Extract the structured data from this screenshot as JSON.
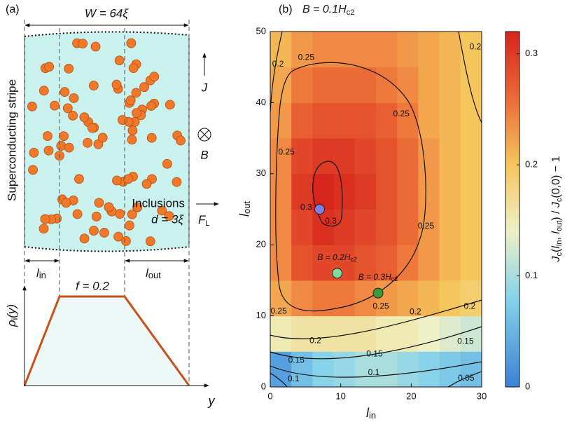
{
  "panel_a": {
    "label": "(a)",
    "width_label": "W = 64ξ",
    "current": "J",
    "field": "B",
    "force": [
      "F",
      "L"
    ],
    "side_label": "Superconducting stripe",
    "inclusions": "Inclusions",
    "size_label": "d = 3ξ",
    "l_in": [
      "l",
      "in"
    ],
    "l_out": [
      "l",
      "out"
    ],
    "rho": [
      "ρ",
      "i",
      "(y)"
    ],
    "f_label": "f = 0.2",
    "y_label": "y"
  },
  "chart_data": {
    "type": "heatmap",
    "panel_label": "(b)",
    "title": [
      "B = 0.1H",
      "c2"
    ],
    "xlabel": [
      "l",
      "in"
    ],
    "ylabel": [
      "l",
      "out"
    ],
    "colorbar_label": [
      "J",
      "c",
      "(",
      "l",
      "in",
      ", ",
      "l",
      "out",
      ") / ",
      "J",
      "c",
      "(0,0) − 1"
    ],
    "xlim": [
      0,
      30
    ],
    "xticks": [
      0,
      10,
      20,
      30
    ],
    "ylim": [
      0,
      50
    ],
    "yticks": [
      0,
      10,
      20,
      30,
      40,
      50
    ],
    "clim": [
      0,
      0.32
    ],
    "cticks": [
      0,
      0.1,
      0.2,
      0.3
    ],
    "colorscale": [
      [
        0,
        "#3b82d6"
      ],
      [
        0.08,
        "#86d3ea"
      ],
      [
        0.14,
        "#eef0c6"
      ],
      [
        0.2,
        "#f5c65c"
      ],
      [
        0.26,
        "#ec6a36"
      ],
      [
        0.32,
        "#d7241c"
      ]
    ],
    "x": [
      1.5,
      4.5,
      7.5,
      10.5,
      13.5,
      16.5,
      19.5,
      22.5,
      25.5,
      28.5
    ],
    "y": [
      2.5,
      7.5,
      12.5,
      17.5,
      22.5,
      27.5,
      32.5,
      37.5,
      42.5,
      47.5
    ],
    "z": [
      [
        0.03,
        0.06,
        0.08,
        0.09,
        0.1,
        0.1,
        0.09,
        0.08,
        0.07,
        0.06
      ],
      [
        0.15,
        0.16,
        0.16,
        0.16,
        0.16,
        0.15,
        0.15,
        0.14,
        0.13,
        0.12
      ],
      [
        0.22,
        0.24,
        0.25,
        0.25,
        0.24,
        0.23,
        0.22,
        0.21,
        0.2,
        0.19
      ],
      [
        0.24,
        0.28,
        0.29,
        0.29,
        0.28,
        0.27,
        0.25,
        0.23,
        0.21,
        0.2
      ],
      [
        0.24,
        0.29,
        0.31,
        0.3,
        0.29,
        0.28,
        0.26,
        0.23,
        0.21,
        0.2
      ],
      [
        0.24,
        0.3,
        0.32,
        0.31,
        0.3,
        0.28,
        0.26,
        0.23,
        0.21,
        0.2
      ],
      [
        0.24,
        0.29,
        0.3,
        0.3,
        0.29,
        0.28,
        0.26,
        0.23,
        0.21,
        0.2
      ],
      [
        0.23,
        0.27,
        0.28,
        0.28,
        0.28,
        0.27,
        0.25,
        0.22,
        0.21,
        0.2
      ],
      [
        0.22,
        0.25,
        0.26,
        0.26,
        0.26,
        0.25,
        0.24,
        0.22,
        0.21,
        0.2
      ],
      [
        0.21,
        0.23,
        0.24,
        0.24,
        0.24,
        0.24,
        0.23,
        0.22,
        0.21,
        0.2
      ]
    ],
    "contour_levels": [
      0.05,
      0.1,
      0.15,
      0.2,
      0.25,
      0.3
    ],
    "contour_labels": [
      {
        "value": 0.25,
        "x": 5.1,
        "y": 46.3
      },
      {
        "value": 0.2,
        "x": 1.1,
        "y": 45.4
      },
      {
        "value": 0.25,
        "x": 18.6,
        "y": 38.4
      },
      {
        "value": 0.25,
        "x": 2.3,
        "y": 33
      },
      {
        "value": 0.3,
        "x": 5.1,
        "y": 25.2
      },
      {
        "value": 0.3,
        "x": 8.6,
        "y": 23.3
      },
      {
        "value": 0.25,
        "x": 22.1,
        "y": 22.6
      },
      {
        "value": 0.2,
        "x": 29.1,
        "y": 47.8
      },
      {
        "value": 0.25,
        "x": 1.2,
        "y": 10.6
      },
      {
        "value": 0.25,
        "x": 15.7,
        "y": 11.3
      },
      {
        "value": 0.2,
        "x": 28.3,
        "y": 11.3
      },
      {
        "value": 0.2,
        "x": 20.6,
        "y": 10.5
      },
      {
        "value": 0.2,
        "x": 6.4,
        "y": 6.5
      },
      {
        "value": 0.15,
        "x": 3.7,
        "y": 3.7
      },
      {
        "value": 0.15,
        "x": 14.8,
        "y": 4.6
      },
      {
        "value": 0.15,
        "x": 27.7,
        "y": 6.4
      },
      {
        "value": 0.1,
        "x": 3.3,
        "y": 1.1
      },
      {
        "value": 0.1,
        "x": 14.7,
        "y": 2
      },
      {
        "value": 0.05,
        "x": 27.8,
        "y": 1.2
      }
    ],
    "points": [
      {
        "x": 7,
        "y": 25,
        "color": "#7f80e6"
      },
      {
        "x": 9.5,
        "y": 16,
        "color": "#7fdca0",
        "label": [
          "B = 0.2H",
          "c2"
        ]
      },
      {
        "x": 15.3,
        "y": 13.2,
        "color": "#3a9a3a",
        "label": [
          "B = 0.3H",
          "c2"
        ]
      }
    ]
  }
}
